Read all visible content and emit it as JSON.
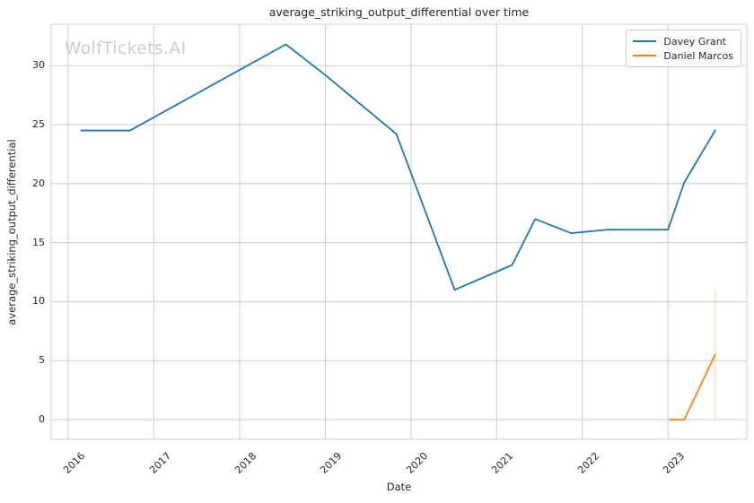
{
  "watermark": {
    "text": "WolfTickets.AI",
    "color": "#cccccc"
  },
  "colors": {
    "grid": "#cccccc",
    "spine": "#cccccc",
    "text": "#262626",
    "background": "#ffffff"
  },
  "chart_data": {
    "type": "line",
    "title": "average_striking_output_differential over time",
    "xlabel": "Date",
    "ylabel": "average_striking_output_differential",
    "xlim": [
      2015.8,
      2023.92
    ],
    "ylim": [
      -1.67,
      33.51
    ],
    "xticks": [
      "2016",
      "2017",
      "2018",
      "2019",
      "2020",
      "2021",
      "2022",
      "2023"
    ],
    "xtick_values": [
      2016,
      2017,
      2018,
      2019,
      2020,
      2021,
      2022,
      2023
    ],
    "yticks": [
      "0",
      "5",
      "10",
      "15",
      "20",
      "25",
      "30"
    ],
    "ytick_values": [
      0,
      5,
      10,
      15,
      20,
      25,
      30
    ],
    "grid": true,
    "legend_position": "upper right",
    "series": [
      {
        "name": "Davey Grant",
        "color": "#1f77b4",
        "x": [
          2016.15,
          2016.72,
          2018.54,
          2019.0,
          2019.83,
          2020.51,
          2021.18,
          2021.45,
          2021.87,
          2022.3,
          2023.0,
          2023.19,
          2023.55
        ],
        "y": [
          24.5,
          24.5,
          31.8,
          29.2,
          24.2,
          11.0,
          13.1,
          17.0,
          15.8,
          16.1,
          16.1,
          20.1,
          24.5
        ]
      },
      {
        "name": "Daniel Marcos",
        "color": "#ff7f0e",
        "x": [
          2023.02,
          2023.19,
          2023.55
        ],
        "y": [
          0.0,
          0.0,
          5.5
        ],
        "ci": {
          "x": 2023.55,
          "y_low": 0.0,
          "y_high": 11.0
        }
      }
    ]
  }
}
